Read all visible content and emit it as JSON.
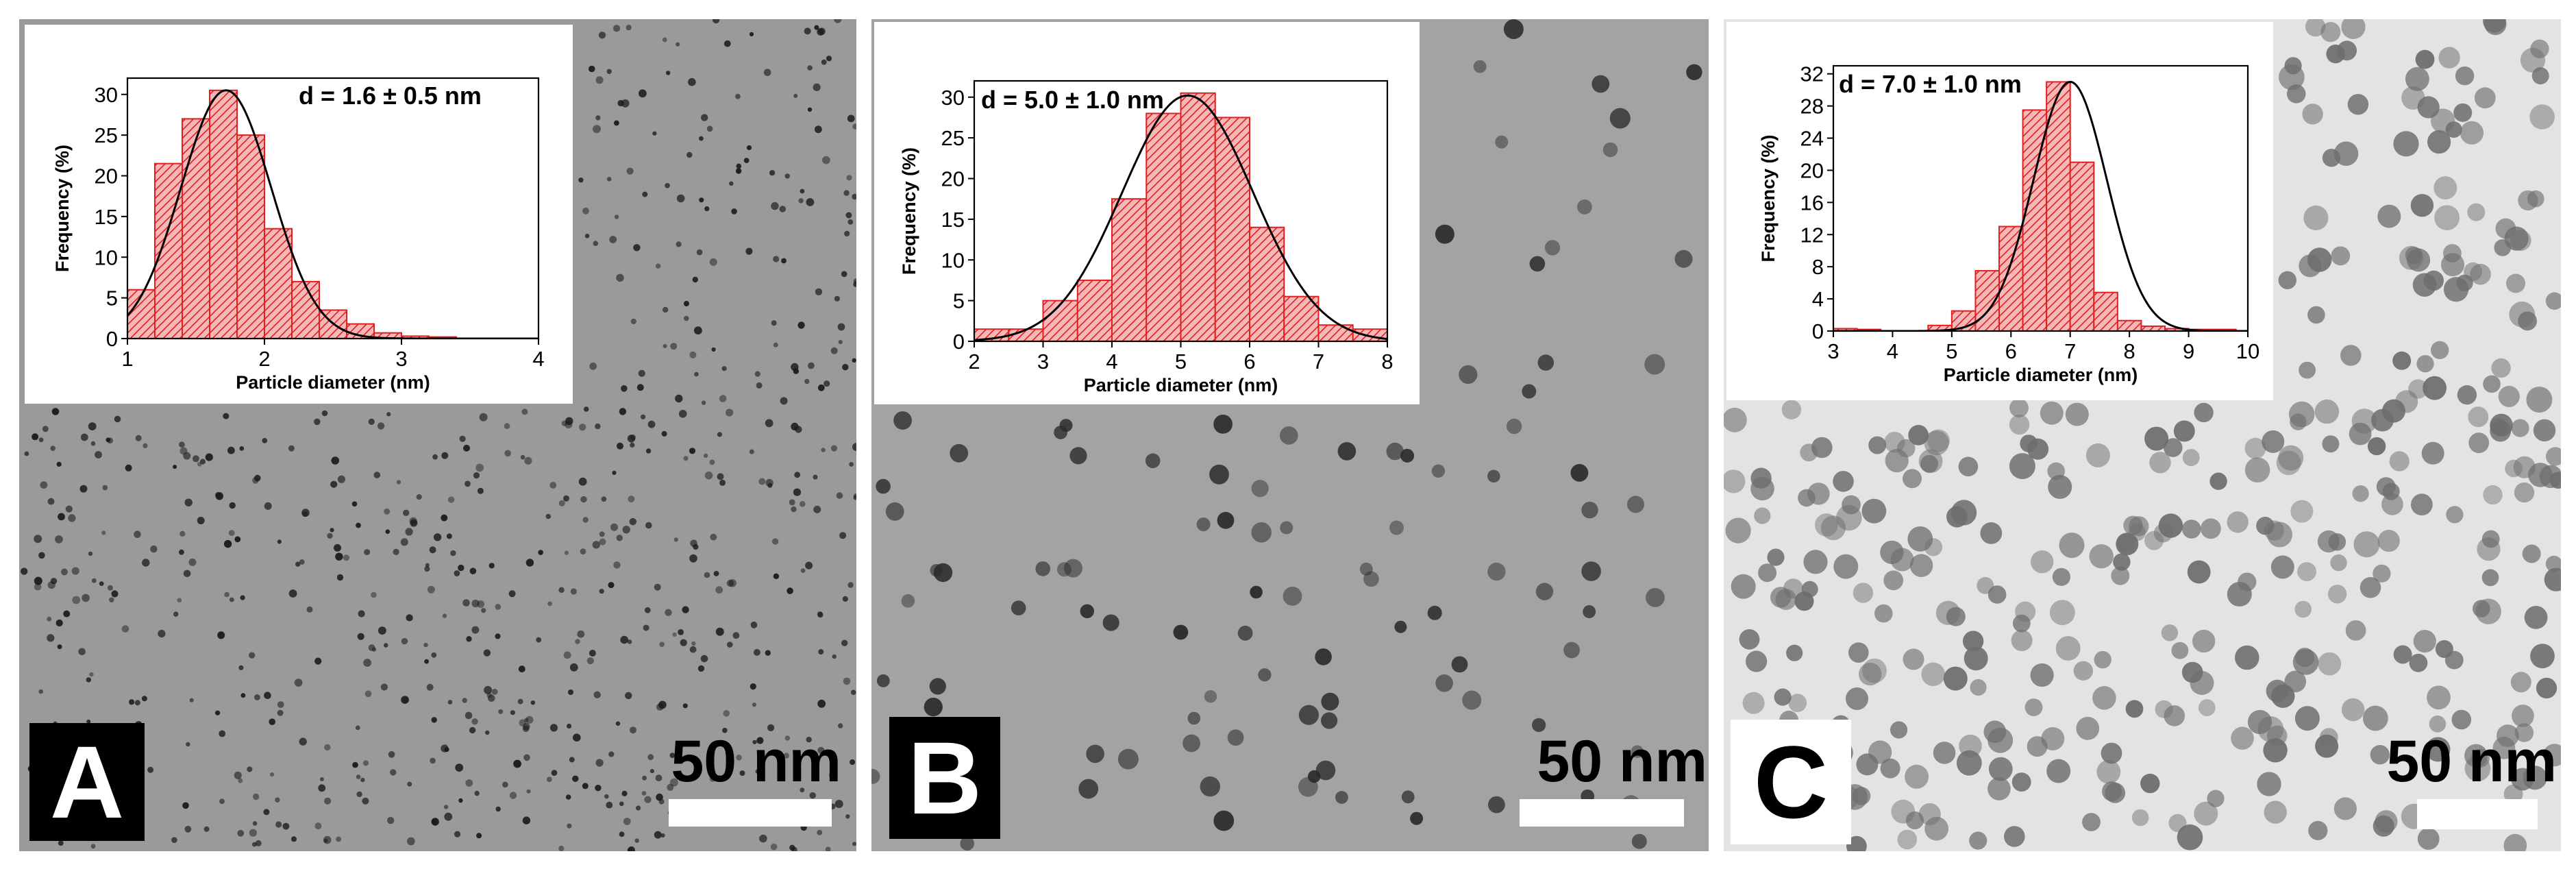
{
  "panels": [
    {
      "letter": "A",
      "scale_label": "50 nm",
      "colors": {
        "field": "#9a9a9a",
        "particle": "#1a1a1a",
        "letter_bg": "#000000",
        "letter_fg": "#ffffff"
      }
    },
    {
      "letter": "B",
      "scale_label": "50 nm",
      "colors": {
        "field": "#a3a3a3",
        "particle": "#2a2a2a",
        "letter_bg": "#000000",
        "letter_fg": "#ffffff"
      }
    },
    {
      "letter": "C",
      "scale_label": "50 nm",
      "colors": {
        "field": "#e3e3e3",
        "particle": "#6e6e6e",
        "letter_bg": "#ffffff",
        "letter_fg": "#000000"
      }
    }
  ],
  "chart_data": [
    {
      "type": "bar",
      "title": "",
      "annotation": "d = 1.6 ± 0.5 nm",
      "xlabel": "Particle diameter (nm)",
      "ylabel": "Frequency (%)",
      "xlim": [
        1,
        4
      ],
      "ylim": [
        0,
        32
      ],
      "xticks": [
        1,
        2,
        3,
        4
      ],
      "yticks": [
        0,
        5,
        10,
        15,
        20,
        25,
        30
      ],
      "bin_width": 0.2,
      "bin_starts": [
        1.0,
        1.2,
        1.4,
        1.6,
        1.8,
        2.0,
        2.2,
        2.4,
        2.6,
        2.8,
        3.0,
        3.2
      ],
      "values": [
        6,
        21.5,
        27,
        30.5,
        25,
        13.5,
        7,
        3.5,
        1.8,
        0.7,
        0.3,
        0.2
      ],
      "fit": {
        "kind": "gaussian",
        "mean": 1.72,
        "sigma": 0.33,
        "peak": 30.5
      },
      "colors": {
        "bar_fill": "#f4b8b8",
        "bar_edge": "#e02020",
        "hatch": "#e02020",
        "fit": "#000000"
      }
    },
    {
      "type": "bar",
      "title": "",
      "annotation": "d = 5.0 ± 1.0 nm",
      "xlabel": "Particle diameter (nm)",
      "ylabel": "Frequency (%)",
      "xlim": [
        2,
        8
      ],
      "ylim": [
        0,
        32
      ],
      "xticks": [
        2,
        3,
        4,
        5,
        6,
        7,
        8
      ],
      "yticks": [
        0,
        5,
        10,
        15,
        20,
        25,
        30
      ],
      "bin_width": 0.5,
      "bin_starts": [
        2.0,
        2.5,
        3.0,
        3.5,
        4.0,
        4.5,
        5.0,
        5.5,
        6.0,
        6.5,
        7.0,
        7.5
      ],
      "values": [
        1.5,
        1.5,
        5,
        7.5,
        17.5,
        28,
        30.5,
        27.5,
        14,
        5.5,
        2,
        1.5
      ],
      "fit": {
        "kind": "gaussian",
        "mean": 5.1,
        "sigma": 0.95,
        "peak": 30.2
      },
      "colors": {
        "bar_fill": "#f4b8b8",
        "bar_edge": "#e02020",
        "hatch": "#e02020",
        "fit": "#000000"
      }
    },
    {
      "type": "bar",
      "title": "",
      "annotation": "d = 7.0 ± 1.0 nm",
      "xlabel": "Particle diameter (nm)",
      "ylabel": "Frequency (%)",
      "xlim": [
        3,
        10
      ],
      "ylim": [
        0,
        33
      ],
      "xticks": [
        3,
        4,
        5,
        6,
        7,
        8,
        9,
        10
      ],
      "yticks": [
        0,
        4,
        8,
        12,
        16,
        20,
        24,
        28,
        32
      ],
      "bin_width": 0.4,
      "bin_starts": [
        3.0,
        3.4,
        4.6,
        5.0,
        5.4,
        5.8,
        6.2,
        6.6,
        7.0,
        7.4,
        7.8,
        8.2,
        8.6,
        9.0,
        9.4
      ],
      "values": [
        0.3,
        0.2,
        0.7,
        2.5,
        7.5,
        13,
        27.5,
        31,
        21,
        4.8,
        1.3,
        0.6,
        0.3,
        0.2,
        0.2
      ],
      "fit": {
        "kind": "gaussian",
        "mean": 7.0,
        "sigma": 0.62,
        "peak": 31
      },
      "colors": {
        "bar_fill": "#f4b8b8",
        "bar_edge": "#e02020",
        "hatch": "#e02020",
        "fit": "#000000"
      }
    }
  ]
}
